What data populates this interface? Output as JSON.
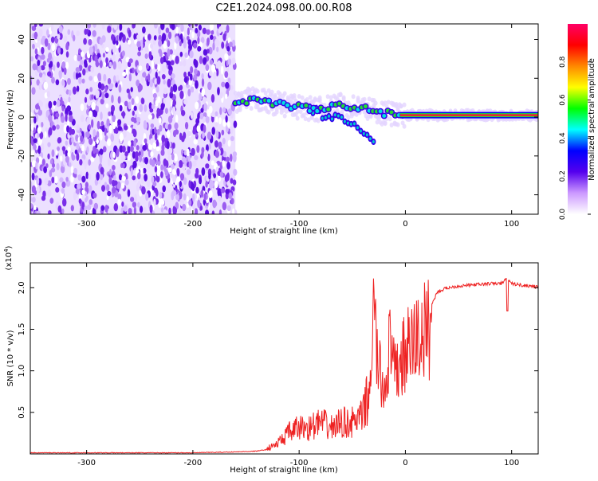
{
  "title": "C2E1.2024.098.00.00.R08",
  "chart_data": [
    {
      "type": "heatmap",
      "xlabel": "Height of straight line (km)",
      "ylabel": "Frequency (Hz)",
      "xlim": [
        -353,
        125
      ],
      "ylim": [
        -50,
        48
      ],
      "x_ticks": [
        -300,
        -200,
        -100,
        0,
        100
      ],
      "y_ticks": [
        -40,
        -20,
        0,
        20,
        40
      ],
      "noise_region_x": [
        -353,
        -160
      ],
      "signal_track": [
        {
          "x": -160,
          "y": 8
        },
        {
          "x": -140,
          "y": 9
        },
        {
          "x": -120,
          "y": 7
        },
        {
          "x": -100,
          "y": 5
        },
        {
          "x": -80,
          "y": 4
        },
        {
          "x": -60,
          "y": 6
        },
        {
          "x": -40,
          "y": 5
        },
        {
          "x": -20,
          "y": 2
        },
        {
          "x": 0,
          "y": 1
        },
        {
          "x": 50,
          "y": 1
        },
        {
          "x": 100,
          "y": 1
        },
        {
          "x": 125,
          "y": 1
        }
      ],
      "colorbar": {
        "label": "Normalized spectral amplitude",
        "range": [
          0.0,
          1.0
        ],
        "ticks": [
          "0.0",
          "0.2",
          "0.4",
          "0.6",
          "0.8"
        ],
        "colors": [
          "#ffffff",
          "#cc99ff",
          "#5500ee",
          "#0000ff",
          "#00ffff",
          "#00ff00",
          "#ffff00",
          "#ff8800",
          "#ff0000",
          "#ff0066"
        ]
      }
    },
    {
      "type": "line",
      "xlabel": "Height of straight line (km)",
      "ylabel": "SNR (10 * v/v)",
      "y_multiplier": "(x10",
      "y_multiplier_exp": "4",
      "xlim": [
        -353,
        125
      ],
      "ylim": [
        0,
        2.3
      ],
      "x_ticks": [
        -300,
        -200,
        -100,
        0,
        100
      ],
      "y_ticks": [
        "0.5",
        "1.0",
        "1.5",
        "2.0"
      ],
      "series": [
        {
          "color": "#ee2222",
          "x": [
            -353,
            -300,
            -250,
            -200,
            -160,
            -140,
            -130,
            -120,
            -110,
            -100,
            -90,
            -80,
            -70,
            -60,
            -50,
            -40,
            -35,
            -30,
            -25,
            -20,
            -15,
            -10,
            -5,
            0,
            10,
            20,
            25,
            30,
            40,
            50,
            60,
            70,
            80,
            90,
            95,
            100,
            110,
            120,
            125
          ],
          "y": [
            0.01,
            0.01,
            0.01,
            0.01,
            0.02,
            0.03,
            0.05,
            0.1,
            0.2,
            0.25,
            0.25,
            0.3,
            0.25,
            0.3,
            0.3,
            0.35,
            0.6,
            1.8,
            1.1,
            0.8,
            1.4,
            1.0,
            1.2,
            1.3,
            1.5,
            1.6,
            1.8,
            1.95,
            2.0,
            2.02,
            2.03,
            2.04,
            2.05,
            2.05,
            2.1,
            2.05,
            2.03,
            2.02,
            2.0
          ]
        }
      ]
    }
  ]
}
